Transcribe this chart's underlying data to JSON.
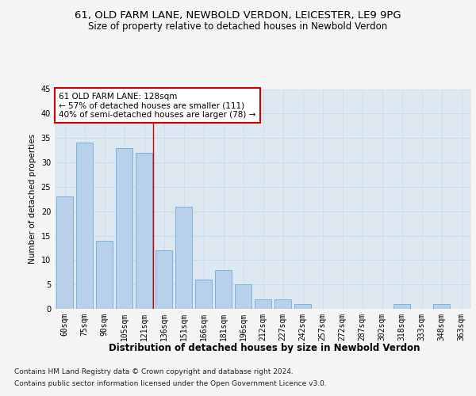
{
  "title1": "61, OLD FARM LANE, NEWBOLD VERDON, LEICESTER, LE9 9PG",
  "title2": "Size of property relative to detached houses in Newbold Verdon",
  "xlabel": "Distribution of detached houses by size in Newbold Verdon",
  "ylabel": "Number of detached properties",
  "categories": [
    "60sqm",
    "75sqm",
    "90sqm",
    "105sqm",
    "121sqm",
    "136sqm",
    "151sqm",
    "166sqm",
    "181sqm",
    "196sqm",
    "212sqm",
    "227sqm",
    "242sqm",
    "257sqm",
    "272sqm",
    "287sqm",
    "302sqm",
    "318sqm",
    "333sqm",
    "348sqm",
    "363sqm"
  ],
  "values": [
    23,
    34,
    14,
    33,
    32,
    12,
    21,
    6,
    8,
    5,
    2,
    2,
    1,
    0,
    0,
    0,
    0,
    1,
    0,
    1,
    0
  ],
  "bar_color": "#b8d0ea",
  "bar_edgecolor": "#6baed6",
  "vline_color": "#cc0000",
  "annotation_text": "61 OLD FARM LANE: 128sqm\n← 57% of detached houses are smaller (111)\n40% of semi-detached houses are larger (78) →",
  "annotation_box_color": "#ffffff",
  "annotation_box_edgecolor": "#cc0000",
  "ylim": [
    0,
    45
  ],
  "yticks": [
    0,
    5,
    10,
    15,
    20,
    25,
    30,
    35,
    40,
    45
  ],
  "grid_color": "#c8d8e8",
  "bg_color": "#dde8f0",
  "fig_bg_color": "#f5f5f5",
  "footer1": "Contains HM Land Registry data © Crown copyright and database right 2024.",
  "footer2": "Contains public sector information licensed under the Open Government Licence v3.0.",
  "title_fontsize": 9.5,
  "subtitle_fontsize": 8.5,
  "xlabel_fontsize": 8.5,
  "ylabel_fontsize": 7.5,
  "tick_fontsize": 7,
  "annotation_fontsize": 7.5,
  "footer_fontsize": 6.5
}
